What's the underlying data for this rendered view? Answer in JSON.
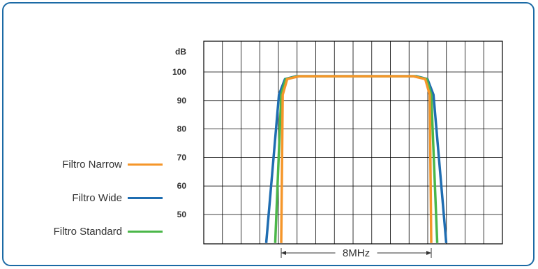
{
  "chart_data": {
    "type": "line",
    "ylabel": "dB",
    "y_ticks": [
      100,
      90,
      80,
      70,
      60,
      50
    ],
    "ylim": [
      40,
      103
    ],
    "bandwidth_label": "8MHz",
    "colors": {
      "grid": "#000000",
      "frame": "#1b6aa5",
      "text": "#333333"
    },
    "series": [
      {
        "name": "Filtro Narrow",
        "color": "#f5962a",
        "points": [
          [
            0.0,
            40
          ],
          [
            0.1,
            92
          ],
          [
            0.4,
            97.5
          ],
          [
            1.2,
            98.5
          ],
          [
            8.8,
            98.5
          ],
          [
            9.6,
            97.5
          ],
          [
            9.9,
            92
          ],
          [
            10.0,
            40
          ]
        ]
      },
      {
        "name": "Filtro Wide",
        "color": "#1f6db1",
        "points": [
          [
            -1.0,
            40
          ],
          [
            -0.15,
            92
          ],
          [
            0.25,
            97.5
          ],
          [
            1.0,
            98.5
          ],
          [
            9.0,
            98.5
          ],
          [
            9.75,
            97.5
          ],
          [
            10.15,
            92
          ],
          [
            11.0,
            40
          ]
        ]
      },
      {
        "name": "Filtro Standard",
        "color": "#4bb749",
        "points": [
          [
            -0.4,
            40
          ],
          [
            0.0,
            92
          ],
          [
            0.3,
            97.5
          ],
          [
            1.1,
            98.5
          ],
          [
            8.9,
            98.5
          ],
          [
            9.7,
            97.5
          ],
          [
            10.0,
            92
          ],
          [
            10.4,
            40
          ]
        ]
      }
    ]
  }
}
